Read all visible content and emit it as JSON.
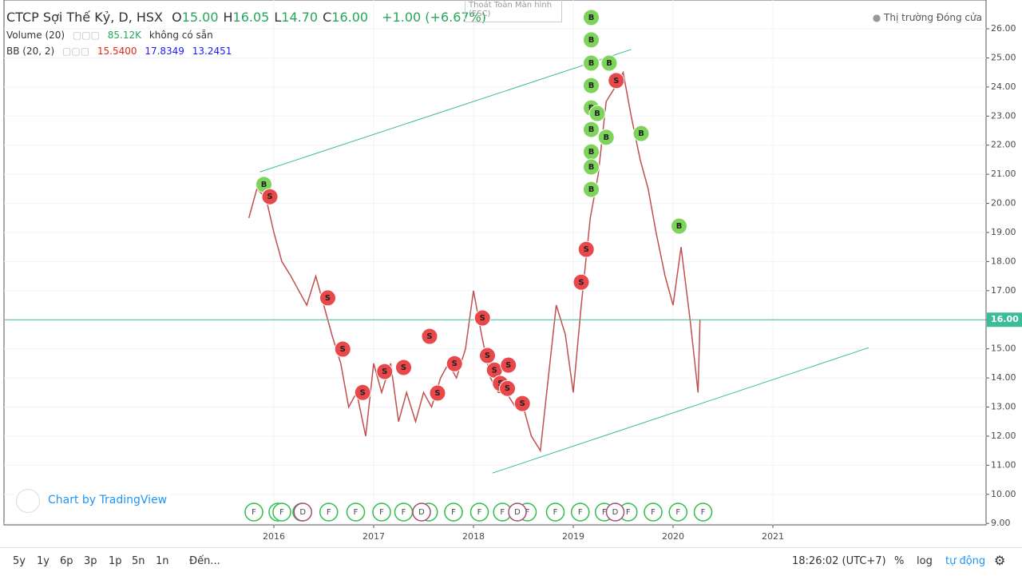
{
  "header": {
    "title": "CTCP Sợi Thế Kỷ, D, HSX",
    "ohlc": [
      {
        "key": "O",
        "value": "15.00"
      },
      {
        "key": "H",
        "value": "16.05"
      },
      {
        "key": "L",
        "value": "14.70"
      },
      {
        "key": "C",
        "value": "16.00"
      }
    ],
    "change": "+1.00 (+6.67%)",
    "volume": {
      "name": "Volume (20)",
      "value": "85.12K",
      "note": "không có sẵn"
    },
    "bb": {
      "name": "BB (20, 2)",
      "values": [
        "15.5400",
        "17.8349",
        "13.2451"
      ]
    },
    "exit_fullscreen": "Thoát Toàn Màn hình (ESC)",
    "market_status": "Thị trường Đóng cửa",
    "credit": "Chart by TradingView"
  },
  "toolbar": {
    "ranges": [
      "5y",
      "1y",
      "6p",
      "3p",
      "1p",
      "5n",
      "1n"
    ],
    "goto": "Đến...",
    "time": "18:26:02 (UTC+7)",
    "percent": "%",
    "log": "log",
    "auto": "tự động"
  },
  "chart_data": {
    "type": "line",
    "color": "#c0504d",
    "x": [
      2015.75,
      2015.83,
      2015.92,
      2016.0,
      2016.08,
      2016.17,
      2016.25,
      2016.33,
      2016.42,
      2016.5,
      2016.58,
      2016.67,
      2016.75,
      2016.83,
      2016.92,
      2017.0,
      2017.08,
      2017.17,
      2017.25,
      2017.33,
      2017.42,
      2017.5,
      2017.58,
      2017.67,
      2017.75,
      2017.83,
      2017.92,
      2018.0,
      2018.08,
      2018.17,
      2018.25,
      2018.33,
      2018.42,
      2018.5,
      2018.58,
      2018.67,
      2018.75,
      2018.83,
      2018.92,
      2019.0,
      2019.08,
      2019.17,
      2019.25,
      2019.33,
      2019.42,
      2019.5,
      2019.58,
      2019.67,
      2019.75,
      2019.83,
      2019.92,
      2020.0,
      2020.08,
      2020.17,
      2020.25,
      2020.27
    ],
    "values": [
      19.5,
      20.5,
      20.2,
      19.0,
      18.0,
      17.5,
      17.0,
      16.5,
      17.5,
      16.5,
      15.5,
      14.5,
      13.0,
      13.5,
      12.0,
      14.5,
      13.5,
      14.5,
      12.5,
      13.5,
      12.5,
      13.5,
      13.0,
      14.0,
      14.5,
      14.0,
      15.0,
      17.0,
      15.5,
      14.0,
      13.5,
      13.5,
      13.0,
      13.0,
      12.0,
      11.5,
      14.0,
      16.5,
      15.5,
      13.5,
      16.5,
      19.5,
      21.0,
      23.5,
      24.0,
      24.5,
      23.0,
      21.5,
      20.5,
      19.0,
      17.5,
      16.5,
      18.5,
      16.0,
      13.5,
      16.0
    ],
    "xlim": [
      2013.296,
      2023.136
    ],
    "xticks": [
      2016,
      2017,
      2018,
      2019,
      2020,
      2021
    ],
    "ylim": [
      8.95,
      26.99
    ],
    "yticks": [
      {
        "value": 9,
        "label": "9.00"
      },
      {
        "value": 10,
        "label": "10.00"
      },
      {
        "value": 11,
        "label": "11.00"
      },
      {
        "value": 12,
        "label": "12.00"
      },
      {
        "value": 13,
        "label": "13.00"
      },
      {
        "value": 14,
        "label": "14.00"
      },
      {
        "value": 15,
        "label": "15.00"
      },
      {
        "value": 16,
        "label": "16.00"
      },
      {
        "value": 17,
        "label": "17.00"
      },
      {
        "value": 18,
        "label": "18.00"
      },
      {
        "value": 19,
        "label": "19.00"
      },
      {
        "value": 20,
        "label": "20.00"
      },
      {
        "value": 21,
        "label": "21.00"
      },
      {
        "value": 22,
        "label": "22.00"
      },
      {
        "value": 23,
        "label": "23.00"
      },
      {
        "value": 24,
        "label": "24.00"
      },
      {
        "value": 25,
        "label": "25.00"
      },
      {
        "value": 26,
        "label": "26.00"
      }
    ],
    "grid": true,
    "last_price": {
      "value": 16,
      "label": "16.00"
    },
    "trendlines": [
      {
        "x": [
          2015.86,
          2019.58
        ],
        "y": [
          21.08,
          25.29
        ]
      },
      {
        "x": [
          2018.19,
          2021.96
        ],
        "y": [
          10.73,
          15.04
        ]
      }
    ],
    "markers": [
      {
        "x": 2015.9,
        "y": 20.65,
        "label": "B"
      },
      {
        "x": 2019.18,
        "y": 26.39,
        "label": "B"
      },
      {
        "x": 2019.18,
        "y": 25.62,
        "label": "B"
      },
      {
        "x": 2019.18,
        "y": 24.82,
        "label": "B"
      },
      {
        "x": 2019.18,
        "y": 24.05,
        "label": "B"
      },
      {
        "x": 2019.18,
        "y": 23.28,
        "label": "B"
      },
      {
        "x": 2019.24,
        "y": 23.09,
        "label": "B"
      },
      {
        "x": 2019.18,
        "y": 22.54,
        "label": "B"
      },
      {
        "x": 2019.18,
        "y": 21.77,
        "label": "B"
      },
      {
        "x": 2019.18,
        "y": 21.25,
        "label": "B"
      },
      {
        "x": 2019.18,
        "y": 20.48,
        "label": "B"
      },
      {
        "x": 2019.36,
        "y": 24.82,
        "label": "B"
      },
      {
        "x": 2019.33,
        "y": 22.27,
        "label": "B"
      },
      {
        "x": 2019.68,
        "y": 22.4,
        "label": "B"
      },
      {
        "x": 2020.06,
        "y": 19.22,
        "label": "B"
      },
      {
        "x": 2015.96,
        "y": 20.23,
        "label": "S"
      },
      {
        "x": 2016.54,
        "y": 16.75,
        "label": "S"
      },
      {
        "x": 2016.69,
        "y": 14.99,
        "label": "S"
      },
      {
        "x": 2016.89,
        "y": 13.5,
        "label": "S"
      },
      {
        "x": 2017.11,
        "y": 14.22,
        "label": "S"
      },
      {
        "x": 2017.3,
        "y": 14.36,
        "label": "S"
      },
      {
        "x": 2017.56,
        "y": 15.43,
        "label": "S"
      },
      {
        "x": 2017.64,
        "y": 13.48,
        "label": "S"
      },
      {
        "x": 2017.81,
        "y": 14.49,
        "label": "S"
      },
      {
        "x": 2018.09,
        "y": 16.06,
        "label": "S"
      },
      {
        "x": 2018.14,
        "y": 14.77,
        "label": "S"
      },
      {
        "x": 2018.21,
        "y": 14.27,
        "label": "S"
      },
      {
        "x": 2018.27,
        "y": 13.81,
        "label": "S"
      },
      {
        "x": 2018.35,
        "y": 14.44,
        "label": "S"
      },
      {
        "x": 2018.34,
        "y": 13.64,
        "label": "S"
      },
      {
        "x": 2018.49,
        "y": 13.12,
        "label": "S"
      },
      {
        "x": 2019.08,
        "y": 17.29,
        "label": "S"
      },
      {
        "x": 2019.13,
        "y": 18.42,
        "label": "S"
      },
      {
        "x": 2019.43,
        "y": 24.22,
        "label": "S"
      }
    ],
    "events": [
      {
        "x": 2015.8,
        "label": "F"
      },
      {
        "x": 2016.04,
        "label": "F"
      },
      {
        "x": 2016.08,
        "label": "F"
      },
      {
        "x": 2016.28,
        "label": "F"
      },
      {
        "x": 2016.55,
        "label": "F"
      },
      {
        "x": 2016.82,
        "label": "F"
      },
      {
        "x": 2017.08,
        "label": "F"
      },
      {
        "x": 2017.3,
        "label": "F"
      },
      {
        "x": 2017.55,
        "label": "F"
      },
      {
        "x": 2017.8,
        "label": "F"
      },
      {
        "x": 2018.06,
        "label": "F"
      },
      {
        "x": 2018.29,
        "label": "F"
      },
      {
        "x": 2018.54,
        "label": "F"
      },
      {
        "x": 2018.82,
        "label": "F"
      },
      {
        "x": 2019.07,
        "label": "F"
      },
      {
        "x": 2019.31,
        "label": "F"
      },
      {
        "x": 2019.55,
        "label": "F"
      },
      {
        "x": 2019.8,
        "label": "F"
      },
      {
        "x": 2020.05,
        "label": "F"
      },
      {
        "x": 2020.3,
        "label": "F"
      },
      {
        "x": 2016.29,
        "label": "D"
      },
      {
        "x": 2017.48,
        "label": "D"
      },
      {
        "x": 2018.44,
        "label": "D"
      },
      {
        "x": 2019.42,
        "label": "D"
      }
    ]
  }
}
